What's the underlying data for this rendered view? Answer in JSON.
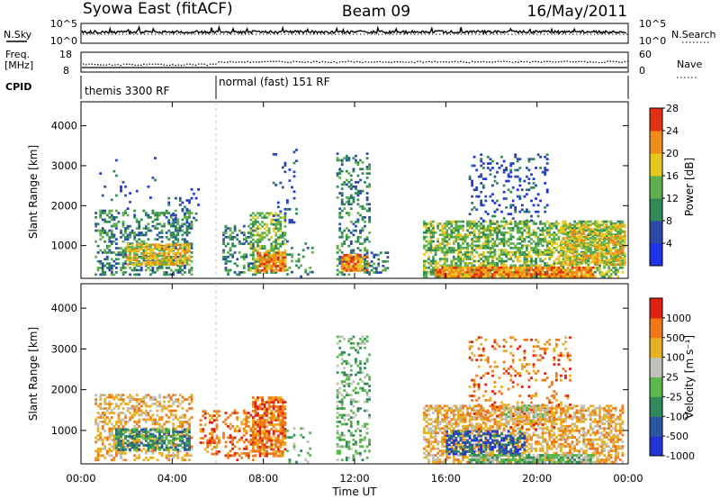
{
  "header": {
    "station": "Syowa East (fitACF)",
    "beam": "Beam 09",
    "date": "16/May/2011"
  },
  "strip1": {
    "left_label": "N.Sky",
    "right_label": "N.Search",
    "left_ticks": [
      "10^5",
      "10^0"
    ],
    "right_ticks": [
      "10^5",
      "10^0"
    ]
  },
  "strip2": {
    "left_label_1": "Freq.",
    "left_label_2": "[MHz]",
    "right_label": "Nave",
    "left_ticks": [
      "18",
      "8"
    ],
    "right_ticks": [
      "60",
      "0"
    ]
  },
  "cpid": {
    "label": "CPID",
    "segments": [
      {
        "name": "themis 3300 RF"
      },
      {
        "name": "normal (fast) 151 RF"
      }
    ]
  },
  "x_axis": {
    "label": "Time UT",
    "ticks": [
      "00:00",
      "04:00",
      "08:00",
      "12:00",
      "16:00",
      "20:00",
      "00:00"
    ]
  },
  "chart_data": [
    {
      "type": "heatmap",
      "title": "Power",
      "xlabel": "Time UT",
      "ylabel": "Slant Range [km]",
      "xlim": [
        0,
        24
      ],
      "ylim": [
        180,
        4600
      ],
      "y_ticks": [
        "1000",
        "2000",
        "3000",
        "4000"
      ],
      "colorbar": {
        "label": "Power [dB]",
        "ticks": [
          "4",
          "8",
          "12",
          "16",
          "20",
          "24",
          "28"
        ],
        "colors": [
          "#1e32e6",
          "#2a4aa8",
          "#2f8a58",
          "#5fb04a",
          "#e8c820",
          "#f08c18",
          "#e23010"
        ]
      },
      "patches": [
        {
          "t0": 0.6,
          "t1": 4.8,
          "r0": 250,
          "r1": 1900,
          "density": 0.42,
          "level": 2
        },
        {
          "t0": 0.8,
          "t1": 3.3,
          "r0": 1900,
          "r1": 3200,
          "density": 0.05,
          "level": 1
        },
        {
          "t0": 2.0,
          "t1": 4.7,
          "r0": 500,
          "r1": 1000,
          "density": 0.7,
          "level": 4
        },
        {
          "t0": 3.8,
          "t1": 5.3,
          "r0": 1500,
          "r1": 2600,
          "density": 0.07,
          "level": 1
        },
        {
          "t0": 6.2,
          "t1": 7.6,
          "r0": 250,
          "r1": 1500,
          "density": 0.35,
          "level": 2
        },
        {
          "t0": 7.4,
          "t1": 8.9,
          "r0": 300,
          "r1": 1800,
          "density": 0.55,
          "level": 3
        },
        {
          "t0": 7.7,
          "t1": 8.9,
          "r0": 350,
          "r1": 800,
          "density": 0.8,
          "level": 5
        },
        {
          "t0": 8.4,
          "t1": 9.4,
          "r0": 1500,
          "r1": 3400,
          "density": 0.08,
          "level": 1
        },
        {
          "t0": 9.0,
          "t1": 10.1,
          "r0": 200,
          "r1": 1100,
          "density": 0.12,
          "level": 2
        },
        {
          "t0": 11.2,
          "t1": 12.6,
          "r0": 250,
          "r1": 3300,
          "density": 0.28,
          "level": 2
        },
        {
          "t0": 11.4,
          "t1": 12.5,
          "r0": 350,
          "r1": 750,
          "density": 0.8,
          "level": 5
        },
        {
          "t0": 12.4,
          "t1": 13.4,
          "r0": 300,
          "r1": 800,
          "density": 0.3,
          "level": 2
        },
        {
          "t0": 15.0,
          "t1": 23.8,
          "r0": 200,
          "r1": 1600,
          "density": 0.6,
          "level": 3
        },
        {
          "t0": 15.5,
          "t1": 22.5,
          "r0": 200,
          "r1": 450,
          "density": 0.85,
          "level": 5
        },
        {
          "t0": 17.0,
          "t1": 20.5,
          "r0": 1600,
          "r1": 3300,
          "density": 0.18,
          "level": 1
        },
        {
          "t0": 21.0,
          "t1": 23.9,
          "r0": 500,
          "r1": 1500,
          "density": 0.6,
          "level": 4
        }
      ]
    },
    {
      "type": "heatmap",
      "title": "Velocity",
      "xlabel": "Time UT",
      "ylabel": "Slant Range [km]",
      "xlim": [
        0,
        24
      ],
      "ylim": [
        180,
        4600
      ],
      "y_ticks": [
        "1000",
        "2000",
        "3000",
        "4000"
      ],
      "colorbar": {
        "label": "Velocity [m s⁻¹]",
        "ticks": [
          "1000",
          "500",
          "100",
          "25",
          "-25",
          "-100",
          "-500",
          "-1000"
        ],
        "colors": [
          "#2234d8",
          "#2a58a0",
          "#2e8a5a",
          "#58b84a",
          "#c0c0b8",
          "#e8b020",
          "#f07818",
          "#e02010"
        ]
      },
      "patches": [
        {
          "t0": 0.6,
          "t1": 4.8,
          "r0": 250,
          "r1": 1900,
          "density": 0.42,
          "level": 5
        },
        {
          "t0": 1.5,
          "t1": 4.7,
          "r0": 500,
          "r1": 1000,
          "density": 0.6,
          "level": 2
        },
        {
          "t0": 5.2,
          "t1": 6.0,
          "r0": 400,
          "r1": 1500,
          "density": 0.4,
          "level": 6
        },
        {
          "t0": 6.2,
          "t1": 7.6,
          "r0": 250,
          "r1": 1500,
          "density": 0.35,
          "level": 6
        },
        {
          "t0": 7.5,
          "t1": 8.9,
          "r0": 350,
          "r1": 1800,
          "density": 0.75,
          "level": 6
        },
        {
          "t0": 9.0,
          "t1": 10.1,
          "r0": 200,
          "r1": 1100,
          "density": 0.12,
          "level": 3
        },
        {
          "t0": 11.2,
          "t1": 12.6,
          "r0": 250,
          "r1": 3300,
          "density": 0.3,
          "level": 3
        },
        {
          "t0": 15.0,
          "t1": 23.8,
          "r0": 200,
          "r1": 1600,
          "density": 0.6,
          "level": 5
        },
        {
          "t0": 16.0,
          "t1": 19.5,
          "r0": 400,
          "r1": 1000,
          "density": 0.55,
          "level": 1
        },
        {
          "t0": 17.0,
          "t1": 22.5,
          "r0": 200,
          "r1": 400,
          "density": 0.8,
          "level": 3
        },
        {
          "t0": 17.0,
          "t1": 21.5,
          "r0": 1000,
          "r1": 3300,
          "density": 0.18,
          "level": 6
        },
        {
          "t0": 18.5,
          "t1": 20.5,
          "r0": 1200,
          "r1": 1600,
          "density": 0.6,
          "level": 4
        }
      ]
    }
  ]
}
